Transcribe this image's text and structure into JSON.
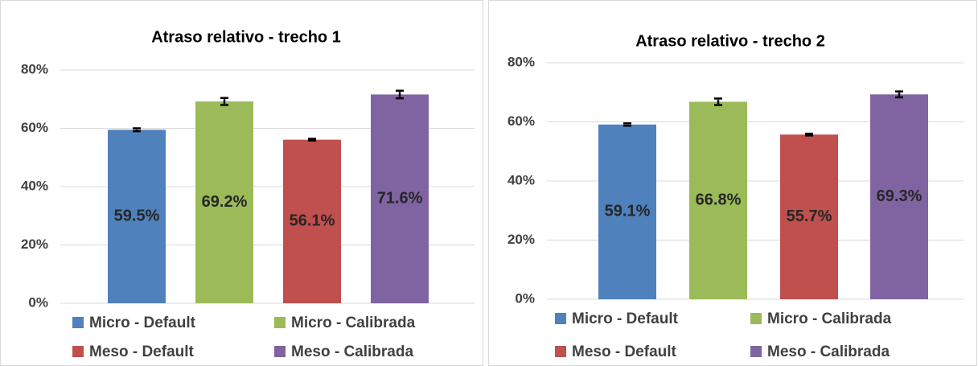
{
  "chart_data": [
    {
      "type": "bar",
      "title": "Atraso relativo - trecho 1",
      "ylim": [
        0,
        80
      ],
      "yticks": [
        {
          "value": 0,
          "label": "0%"
        },
        {
          "value": 20,
          "label": "20%"
        },
        {
          "value": 40,
          "label": "40%"
        },
        {
          "value": 60,
          "label": "60%"
        },
        {
          "value": 80,
          "label": "80%"
        }
      ],
      "grid": true,
      "series": [
        {
          "name": "Micro - Default",
          "color": "#4f81bd",
          "values": [
            59.5
          ],
          "errors": [
            0.5
          ],
          "value_labels": [
            "59.5%"
          ]
        },
        {
          "name": "Micro - Calibrada",
          "color": "#9bbb59",
          "values": [
            69.2
          ],
          "errors": [
            1.2
          ],
          "value_labels": [
            "69.2%"
          ]
        },
        {
          "name": "Meso - Default",
          "color": "#c0504d",
          "values": [
            56.1
          ],
          "errors": [
            0.3
          ],
          "value_labels": [
            "56.1%"
          ]
        },
        {
          "name": "Meso - Calibrada",
          "color": "#8064a2",
          "values": [
            71.6
          ],
          "errors": [
            1.3
          ],
          "value_labels": [
            "71.6%"
          ]
        }
      ]
    },
    {
      "type": "bar",
      "title": "Atraso relativo - trecho 2",
      "ylim": [
        0,
        80
      ],
      "yticks": [
        {
          "value": 0,
          "label": "0%"
        },
        {
          "value": 20,
          "label": "20%"
        },
        {
          "value": 40,
          "label": "40%"
        },
        {
          "value": 60,
          "label": "60%"
        },
        {
          "value": 80,
          "label": "80%"
        }
      ],
      "grid": true,
      "series": [
        {
          "name": "Micro - Default",
          "color": "#4f81bd",
          "values": [
            59.1
          ],
          "errors": [
            0.4
          ],
          "value_labels": [
            "59.1%"
          ]
        },
        {
          "name": "Micro - Calibrada",
          "color": "#9bbb59",
          "values": [
            66.8
          ],
          "errors": [
            1.1
          ],
          "value_labels": [
            "66.8%"
          ]
        },
        {
          "name": "Meso - Default",
          "color": "#c0504d",
          "values": [
            55.7
          ],
          "errors": [
            0.3
          ],
          "value_labels": [
            "55.7%"
          ]
        },
        {
          "name": "Meso - Calibrada",
          "color": "#8064a2",
          "values": [
            69.3
          ],
          "errors": [
            1.0
          ],
          "value_labels": [
            "69.3%"
          ]
        }
      ]
    }
  ]
}
